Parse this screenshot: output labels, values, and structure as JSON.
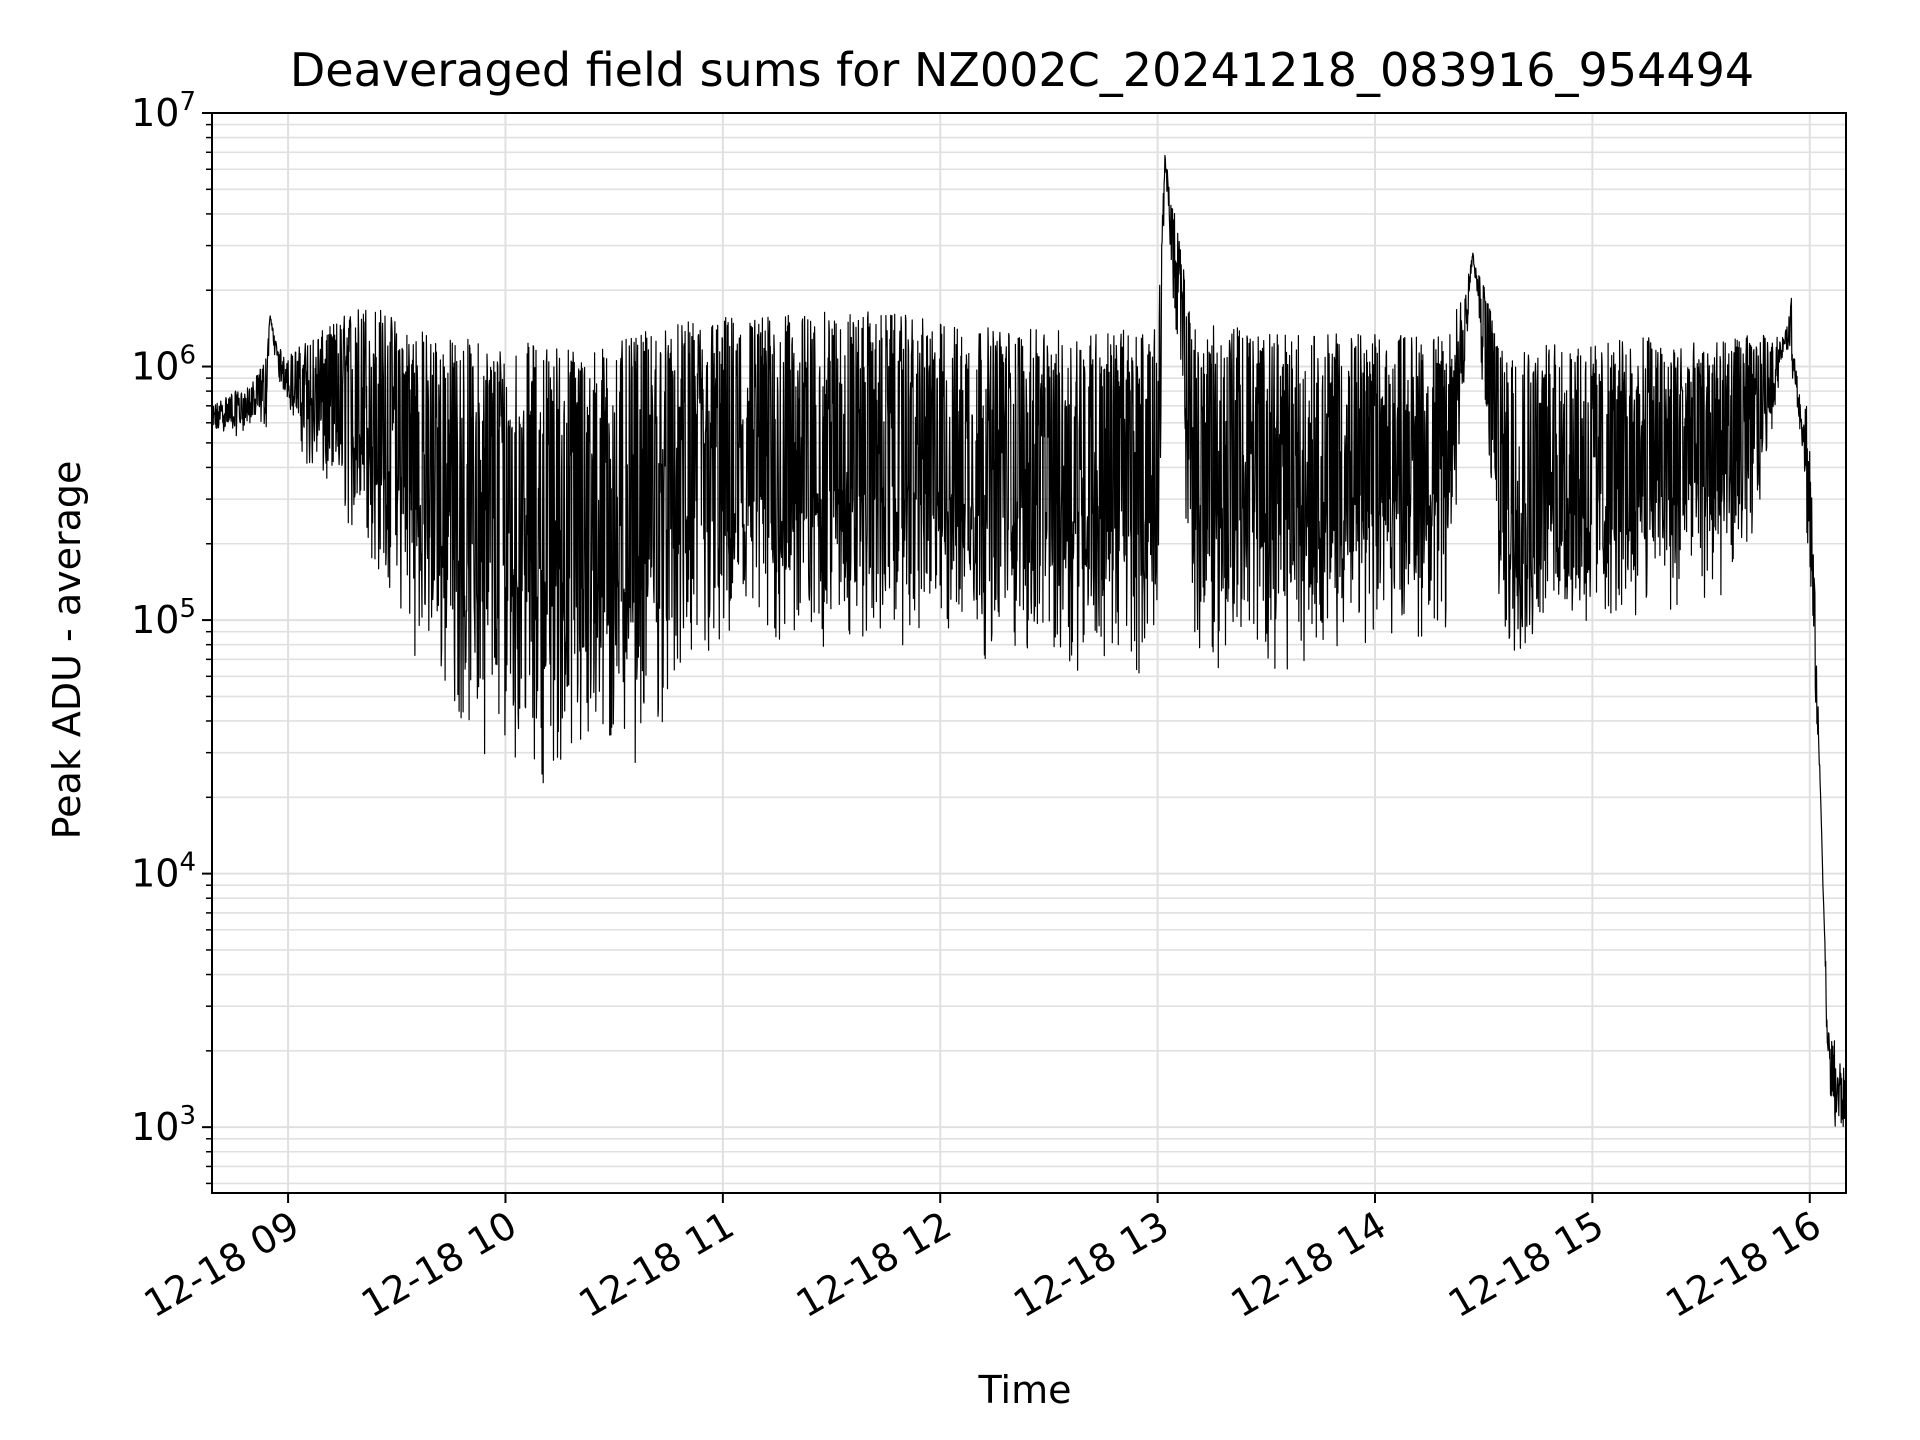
{
  "chart_data": {
    "type": "line",
    "title": "Deaveraged field sums for NZ002C_20241218_083916_954494",
    "xlabel": "Time",
    "ylabel": "Peak ADU - average",
    "yscale": "log",
    "ylim": [
      550,
      10000000
    ],
    "xlim": [
      "2024-12-18 08:39",
      "2024-12-18 16:10"
    ],
    "grid": true,
    "line_color": "#000000",
    "grid_color": "#e0e0e0",
    "x_ticks": [
      {
        "t": "2024-12-18 09:00",
        "label": "12-18 09"
      },
      {
        "t": "2024-12-18 10:00",
        "label": "12-18 10"
      },
      {
        "t": "2024-12-18 11:00",
        "label": "12-18 11"
      },
      {
        "t": "2024-12-18 12:00",
        "label": "12-18 12"
      },
      {
        "t": "2024-12-18 13:00",
        "label": "12-18 13"
      },
      {
        "t": "2024-12-18 14:00",
        "label": "12-18 14"
      },
      {
        "t": "2024-12-18 15:00",
        "label": "12-18 15"
      },
      {
        "t": "2024-12-18 16:00",
        "label": "12-18 16"
      }
    ],
    "y_ticks": [
      {
        "value": 1000,
        "base": "10",
        "exp": "3"
      },
      {
        "value": 10000,
        "base": "10",
        "exp": "4"
      },
      {
        "value": 100000,
        "base": "10",
        "exp": "5"
      },
      {
        "value": 1000000,
        "base": "10",
        "exp": "6"
      },
      {
        "value": 10000000,
        "base": "10",
        "exp": "7"
      }
    ],
    "series": [
      {
        "x": [
          "2024-12-18 08:39",
          "2024-12-18 08:42",
          "2024-12-18 08:45",
          "2024-12-18 08:48",
          "2024-12-18 08:51",
          "2024-12-18 08:54",
          "2024-12-18 08:55",
          "2024-12-18 08:57",
          "2024-12-18 09:00",
          "2024-12-18 09:03",
          "2024-12-18 09:06",
          "2024-12-18 09:10",
          "2024-12-18 09:14",
          "2024-12-18 09:18",
          "2024-12-18 09:22",
          "2024-12-18 09:26",
          "2024-12-18 09:30",
          "2024-12-18 09:35",
          "2024-12-18 09:40",
          "2024-12-18 09:45",
          "2024-12-18 09:50",
          "2024-12-18 09:55",
          "2024-12-18 10:00",
          "2024-12-18 10:05",
          "2024-12-18 10:10",
          "2024-12-18 10:15",
          "2024-12-18 10:20",
          "2024-12-18 10:25",
          "2024-12-18 10:30",
          "2024-12-18 10:35",
          "2024-12-18 10:40",
          "2024-12-18 10:45",
          "2024-12-18 10:50",
          "2024-12-18 10:55",
          "2024-12-18 11:00",
          "2024-12-18 11:10",
          "2024-12-18 11:20",
          "2024-12-18 11:30",
          "2024-12-18 11:40",
          "2024-12-18 11:50",
          "2024-12-18 12:00",
          "2024-12-18 12:10",
          "2024-12-18 12:20",
          "2024-12-18 12:30",
          "2024-12-18 12:40",
          "2024-12-18 12:50",
          "2024-12-18 13:00",
          "2024-12-18 13:02",
          "2024-12-18 13:10",
          "2024-12-18 13:20",
          "2024-12-18 13:30",
          "2024-12-18 13:40",
          "2024-12-18 13:50",
          "2024-12-18 14:00",
          "2024-12-18 14:10",
          "2024-12-18 14:20",
          "2024-12-18 14:27",
          "2024-12-18 14:35",
          "2024-12-18 14:45",
          "2024-12-18 14:55",
          "2024-12-18 15:05",
          "2024-12-18 15:15",
          "2024-12-18 15:25",
          "2024-12-18 15:35",
          "2024-12-18 15:45",
          "2024-12-18 15:53",
          "2024-12-18 15:56",
          "2024-12-18 15:58",
          "2024-12-18 16:00",
          "2024-12-18 16:03",
          "2024-12-18 16:05",
          "2024-12-18 16:07",
          "2024-12-18 16:10"
        ],
        "y": [
          500000,
          550000,
          520000,
          560000,
          570000,
          550000,
          1600000,
          900000,
          700000,
          500000,
          350000,
          300000,
          250000,
          200000,
          170000,
          120000,
          100000,
          70000,
          55000,
          40000,
          32000,
          28000,
          30000,
          25000,
          22000,
          21000,
          20000,
          21000,
          22000,
          25000,
          30000,
          38000,
          45000,
          50000,
          55000,
          60000,
          65000,
          70000,
          72000,
          75000,
          70000,
          68000,
          65000,
          62000,
          60000,
          58000,
          60000,
          6800000,
          62000,
          60000,
          60000,
          65000,
          70000,
          80000,
          80000,
          75000,
          2800000,
          60000,
          70000,
          80000,
          90000,
          95000,
          100000,
          110000,
          200000,
          1200000,
          900000,
          500000,
          120000,
          20000,
          1500,
          900,
          1000
        ],
        "y_top": [
          700000,
          750000,
          800000,
          800000,
          900000,
          1100000,
          1600000,
          1200000,
          1100000,
          1200000,
          1300000,
          1400000,
          1550000,
          1700000,
          1800000,
          1700000,
          1550000,
          1450000,
          1350000,
          1300000,
          1300000,
          1250000,
          1250000,
          1250000,
          1250000,
          1250000,
          1200000,
          1200000,
          1250000,
          1300000,
          1400000,
          1450000,
          1500000,
          1550000,
          1600000,
          1600000,
          1600000,
          1650000,
          1650000,
          1600000,
          1500000,
          1450000,
          1400000,
          1400000,
          1400000,
          1400000,
          1400000,
          6800000,
          1450000,
          1450000,
          1350000,
          1350000,
          1350000,
          1350000,
          1350000,
          1300000,
          2800000,
          1300000,
          1250000,
          1200000,
          1250000,
          1350000,
          1250000,
          1250000,
          1350000,
          1300000,
          2300000,
          1000000,
          700000,
          20000,
          2500,
          2200,
          1600
        ]
      }
    ]
  }
}
